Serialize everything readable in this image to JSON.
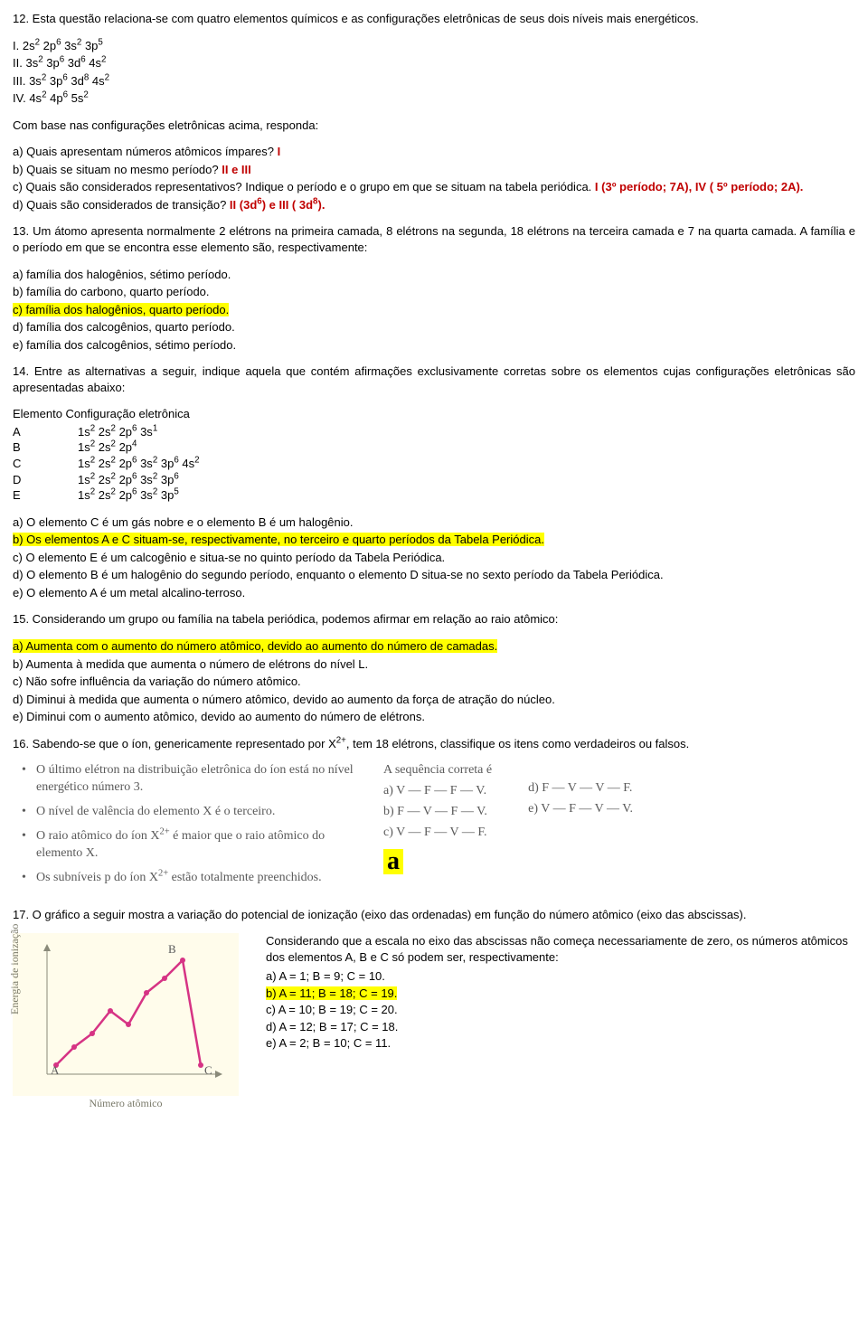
{
  "q12": {
    "stem": "12. Esta questão relaciona-se com quatro elementos químicos e as configurações eletrônicas de seus dois níveis mais energéticos.",
    "items": [
      {
        "label": "I.",
        "cfg": "2s² 2p⁶ 3s² 3p⁵"
      },
      {
        "label": "II.",
        "cfg": "3s² 3p⁶ 3d⁶ 4s²"
      },
      {
        "label": "III.",
        "cfg": "3s² 3p⁶ 3d⁸ 4s²"
      },
      {
        "label": "IV.",
        "cfg": "4s² 4p⁶ 5s²"
      }
    ],
    "lead": "Com base nas configurações eletrônicas acima, responda:",
    "a": "a) Quais apresentam números atômicos ímpares? ",
    "a_ans": "I",
    "b": "b) Quais se situam no mesmo período? ",
    "b_ans": "II e III",
    "c1": "c) Quais são considerados representativos? Indique o período e o grupo em que se situam na tabela periódica. ",
    "c_ans": "I (3º período; 7A), IV ( 5º período; 2A).",
    "d": "d) Quais são considerados de transição? ",
    "d_ans": "II (3d⁶) e III ( 3d⁸)."
  },
  "q13": {
    "stem": "13. Um átomo apresenta normalmente 2 elétrons na primeira camada, 8 elétrons na segunda, 18 elétrons na terceira camada e 7 na quarta camada. A família e o período em que se encontra esse elemento são, respectivamente:",
    "a": "a) família dos halogênios, sétimo período.",
    "b": "b) família do carbono, quarto período.",
    "c": "c) família dos halogênios, quarto período.",
    "d": "d) família dos calcogênios, quarto período.",
    "e": "e) família dos calcogênios, sétimo período."
  },
  "q14": {
    "stem": "14. Entre as alternativas a seguir, indique aquela que contém afirmações exclusivamente corretas sobre os elementos cujas configurações eletrônicas são apresentadas abaixo:",
    "title": "Elemento Configuração eletrônica",
    "rows": [
      {
        "el": "A",
        "cfg": "1s² 2s² 2p⁶ 3s¹"
      },
      {
        "el": "B",
        "cfg": "1s² 2s² 2p⁴"
      },
      {
        "el": "C",
        "cfg": "1s² 2s² 2p⁶ 3s² 3p⁶ 4s²"
      },
      {
        "el": "D",
        "cfg": "1s² 2s² 2p⁶ 3s² 3p⁶"
      },
      {
        "el": "E",
        "cfg": "1s² 2s² 2p⁶ 3s² 3p⁵"
      }
    ],
    "a": "a) O elemento C é um gás nobre e o elemento B é um halogênio.",
    "b": "b) Os elementos A e C situam-se, respectivamente, no terceiro e quarto períodos da Tabela Periódica.",
    "c": "c) O elemento E é um calcogênio e situa-se no quinto período da Tabela Periódica.",
    "d": "d) O elemento B é um halogênio do segundo período, enquanto o elemento D situa-se no sexto período da Tabela Periódica.",
    "e": "e) O elemento A é um metal alcalino-terroso."
  },
  "q15": {
    "stem": "15. Considerando um grupo ou família na tabela periódica, podemos afirmar em relação ao raio atômico:",
    "a": "a) Aumenta com o aumento do número atômico, devido ao aumento do número de camadas.",
    "b": "b) Aumenta à medida que aumenta o número de elétrons do nível L.",
    "c": "c) Não sofre influência da variação do número atômico.",
    "d": "d) Diminui à medida que aumenta o número atômico, devido ao aumento da força de atração do núcleo.",
    "e": "e) Diminui com o aumento atômico, devido ao aumento do número de elétrons."
  },
  "q16": {
    "stem": "16. Sabendo-se que o íon, genericamente representado por X²⁺, tem 18 elétrons, classifique os itens como verdadeiros ou falsos.",
    "bullets": [
      "O último elétron na distribuição eletrônica do íon está no nível energético número 3.",
      "O nível de valência do elemento X é o terceiro.",
      "O raio atômico do íon X²⁺ é maior que o raio atômico do elemento X.",
      "Os subníveis p do íon X²⁺ estão totalmente preenchidos."
    ],
    "seq_title": "A sequência correta é",
    "left_opts": [
      "a)  V — F — F — V.",
      "b)  F — V — F — V.",
      "c)  V — F — V — F."
    ],
    "right_opts": [
      "d)  F — V — V — F.",
      "e)  V — F — V — V."
    ],
    "answer_letter": "a"
  },
  "q17": {
    "stem": "17. O gráfico a seguir mostra a variação do potencial de ionização (eixo das ordenadas) em função do número atômico (eixo das abscissas).",
    "right_lead": "Considerando que a escala no eixo das abscissas não começa necessariamente de zero, os números atômicos dos elementos A, B e C só podem ser, respectivamente:",
    "a": "a) A = 1; B = 9; C = 10.",
    "b": "b) A = 11; B = 18; C = 19.",
    "c": "c) A = 10; B = 19; C = 20.",
    "d": "d) A = 12; B = 17; C = 18.",
    "e": "e) A = 2; B = 10; C = 11.",
    "chart": {
      "ylabel": "Energia de ionização",
      "xlabel": "Número atômico",
      "bg": "#fffceb",
      "axis_color": "#8a8a7a",
      "line_color": "#d63384",
      "point_labels": [
        "A",
        "B",
        "C"
      ],
      "points_x": [
        20,
        40,
        60,
        80,
        100,
        120,
        140,
        160,
        180
      ],
      "points_y": [
        140,
        120,
        105,
        80,
        95,
        60,
        44,
        24,
        140
      ],
      "label_pos": {
        "A": [
          14,
          150
        ],
        "B": [
          144,
          16
        ],
        "C": [
          184,
          150
        ]
      }
    }
  }
}
